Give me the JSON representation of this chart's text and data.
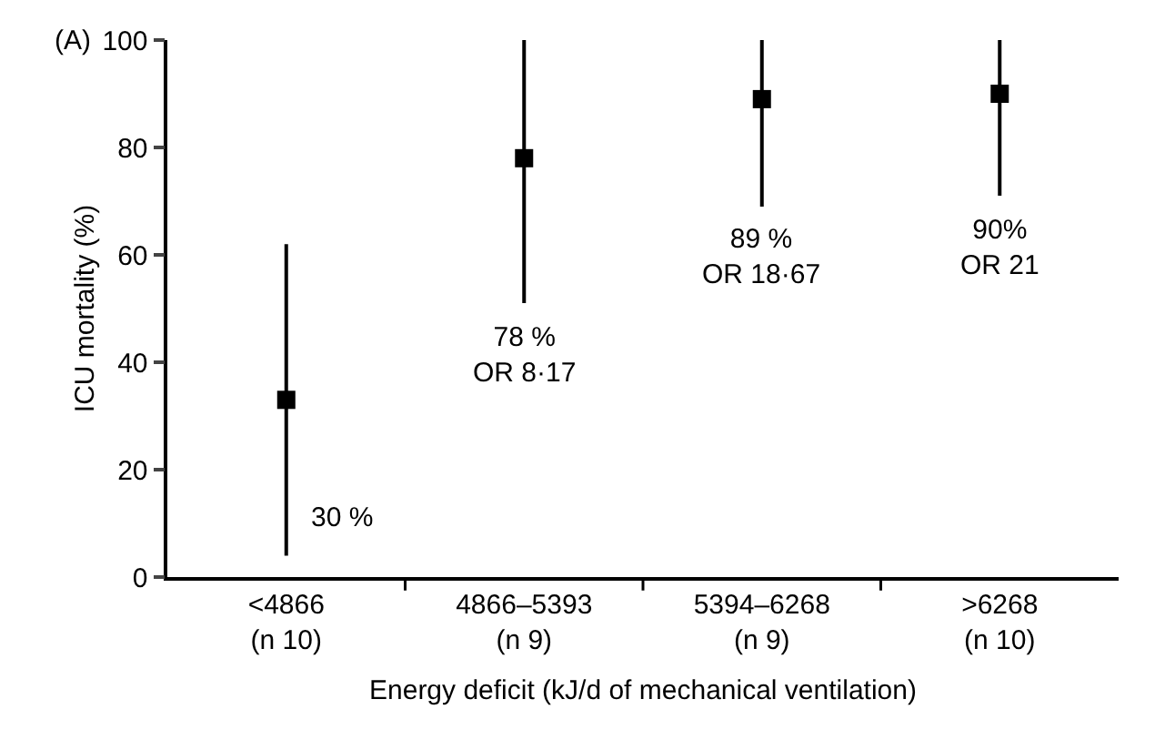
{
  "chart_data": {
    "type": "scatter",
    "categories": [
      "<4866\n(n 10)",
      "4866–5393\n(n 9)",
      "5394–6268\n(n 9)",
      ">6268\n(n 10)"
    ],
    "values": [
      33,
      78,
      89,
      90
    ],
    "errors": [
      [
        4,
        62
      ],
      [
        51,
        100
      ],
      [
        69,
        100
      ],
      [
        71,
        100
      ]
    ],
    "color": "#000000",
    "marker": "square",
    "xlabel": "Energy deficit (kJ/d of mechanical ventilation)",
    "ylabel": "ICU mortality (%)",
    "ylim": [
      0,
      100
    ],
    "yticks": [
      0,
      20,
      40,
      60,
      80,
      100
    ],
    "grid": false,
    "annotations": [
      "(A)",
      "30 %",
      "78 %\nOR 8·17",
      "89 %\nOR 18·67",
      "90%\nOR 21"
    ]
  }
}
